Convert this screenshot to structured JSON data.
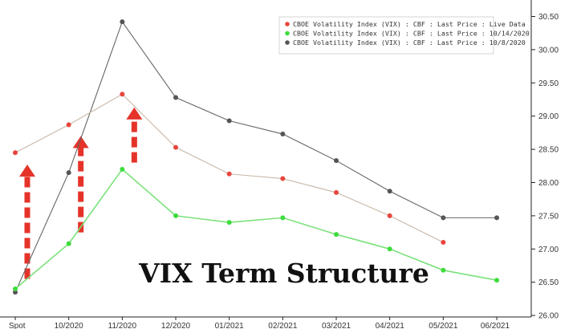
{
  "chart_data": {
    "type": "line",
    "categories": [
      "Spot",
      "10/2020",
      "11/2020",
      "12/2020",
      "01/2021",
      "02/2021",
      "03/2021",
      "04/2021",
      "05/2021",
      "06/2021"
    ],
    "series": [
      {
        "name": "CBOE Volatility Index (VIX) : CBF : Last Price : Live Data",
        "color": "#e8453c",
        "line_color": "#c9b8a8",
        "values": [
          28.45,
          28.87,
          29.33,
          28.53,
          28.13,
          28.06,
          27.85,
          27.5,
          27.1,
          null
        ]
      },
      {
        "name": "CBOE Volatility Index (VIX) : CBF : Last Price : 10/14/2020",
        "color": "#3ddc3d",
        "line_color": "#7be27b",
        "values": [
          26.4,
          27.08,
          28.2,
          27.5,
          27.4,
          27.47,
          27.22,
          27.0,
          26.68,
          26.53
        ]
      },
      {
        "name": "CBOE Volatility Index (VIX) : CBF : Last Price : 10/8/2020",
        "color": "#555555",
        "line_color": "#666666",
        "values": [
          26.35,
          28.15,
          30.42,
          29.28,
          28.93,
          28.73,
          28.33,
          27.87,
          27.47,
          27.47
        ]
      }
    ],
    "ylim": [
      26.0,
      30.6
    ],
    "yticks": [
      "26.00",
      "26.50",
      "27.00",
      "27.50",
      "28.00",
      "28.50",
      "29.00",
      "29.50",
      "30.00",
      "30.50"
    ],
    "grid": false,
    "legend_position": "top-right",
    "annotation": "VIX Term Structure",
    "arrows": [
      {
        "category": "Spot",
        "from": 26.55,
        "to": 28.27
      },
      {
        "category": "10/2020",
        "from": 27.25,
        "to": 28.7
      },
      {
        "category": "11/2020",
        "from": 28.3,
        "to": 29.13
      }
    ],
    "arrow_color": "#e5332a"
  }
}
